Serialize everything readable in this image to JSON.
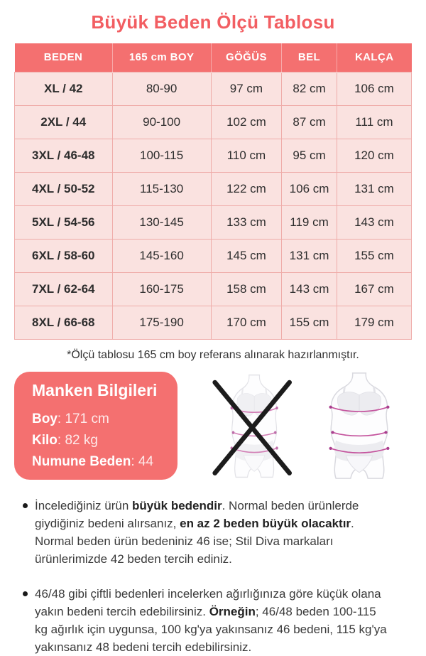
{
  "colors": {
    "title": "#f25e62",
    "coral": "#f47070",
    "row-bg": "#fae2e0",
    "cell-border": "#efaca9",
    "text": "#2d2d2d",
    "note-text": "#3a3a3a",
    "measure-line": "#c4539d",
    "figure-outline": "#d9d9df",
    "figure-fill": "#ececf0",
    "x-mark": "#1c1c1c"
  },
  "page": {
    "title": "Büyük Beden Ölçü Tablosu",
    "footnote": "*Ölçü tablosu 165 cm boy referans alınarak hazırlanmıştır."
  },
  "size_table": {
    "columns": [
      "BEDEN",
      "165 cm BOY",
      "GÖĞÜS",
      "BEL",
      "KALÇA"
    ],
    "rows": [
      [
        "XL / 42",
        "80-90",
        "97 cm",
        "82 cm",
        "106 cm"
      ],
      [
        "2XL / 44",
        "90-100",
        "102 cm",
        "87 cm",
        "111 cm"
      ],
      [
        "3XL / 46-48",
        "100-115",
        "110 cm",
        "95 cm",
        "120 cm"
      ],
      [
        "4XL / 50-52",
        "115-130",
        "122 cm",
        "106 cm",
        "131 cm"
      ],
      [
        "5XL / 54-56",
        "130-145",
        "133 cm",
        "119 cm",
        "143 cm"
      ],
      [
        "6XL / 58-60",
        "145-160",
        "145 cm",
        "131 cm",
        "155 cm"
      ],
      [
        "7XL / 62-64",
        "160-175",
        "158 cm",
        "143 cm",
        "167 cm"
      ],
      [
        "8XL / 66-68",
        "175-190",
        "170 cm",
        "155 cm",
        "179 cm"
      ]
    ]
  },
  "model_info": {
    "title": "Manken Bilgileri",
    "sep": ": ",
    "fields": [
      {
        "key": "boy",
        "label": "Boy",
        "value": "171 cm"
      },
      {
        "key": "kilo",
        "label": "Kilo",
        "value": "82 kg"
      },
      {
        "key": "numune-beden",
        "label": "Numune Beden",
        "value": "44"
      }
    ]
  },
  "figures": {
    "left_icon": "crossed-out-slim-figure-icon",
    "right_icon": "plus-size-figure-icon"
  },
  "notes": [
    [
      {
        "t": "İncelediğiniz ürün "
      },
      {
        "t": "büyük bedendir",
        "b": true
      },
      {
        "t": ". Normal beden ürünlerde giydiğiniz bedeni alırsanız, "
      },
      {
        "t": "en az 2 beden büyük olacaktır",
        "b": true
      },
      {
        "t": ". Normal beden ürün bedeniniz 46 ise; Stil Diva markaları ürünlerimizde 42 beden tercih ediniz."
      }
    ],
    [
      {
        "t": "46/48 gibi çiftli bedenleri incelerken ağırlığınıza göre küçük olana yakın bedeni tercih edebilirsiniz. "
      },
      {
        "t": "Örneğin",
        "b": true
      },
      {
        "t": "; 46/48 beden 100-115 kg ağırlık için uygunsa, 100 kg'ya yakınsanız 46 bedeni, 115 kg'ya yakınsanız 48 bedeni tercih edebilirsiniz."
      }
    ]
  ]
}
